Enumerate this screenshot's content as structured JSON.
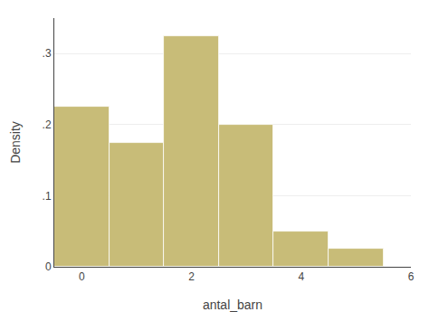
{
  "chart_data": {
    "type": "bar",
    "x": [
      0,
      1,
      2,
      3,
      4,
      5
    ],
    "values": [
      0.225,
      0.175,
      0.325,
      0.2,
      0.05,
      0.025
    ],
    "color": "#c8bc78",
    "xlabel": "antal_barn",
    "ylabel": "Density",
    "xlim": [
      -0.5,
      6
    ],
    "xticks": [
      0,
      2,
      4,
      6
    ],
    "ylim": [
      0,
      0.35
    ],
    "yticks": [
      0,
      {
        "value": 0.1,
        "label": ".1"
      },
      {
        "value": 0.2,
        "label": ".2"
      },
      {
        "value": 0.3,
        "label": ".3"
      }
    ],
    "grid": true
  }
}
